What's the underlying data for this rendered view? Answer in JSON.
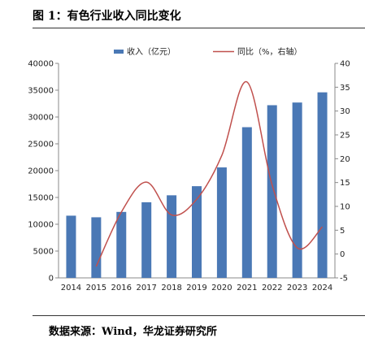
{
  "figure_title": "图 1：有色行业收入同比变化",
  "source_text": "数据来源：Wind，华龙证券研究所",
  "colors": {
    "bar": "#4a78b5",
    "line": "#c0504d",
    "axis": "#888888"
  },
  "chart_data": {
    "type": "bar",
    "categories": [
      "2014",
      "2015",
      "2016",
      "2017",
      "2018",
      "2019",
      "2020",
      "2021",
      "2022",
      "2023",
      "2024"
    ],
    "series": [
      {
        "name": "收入（亿元）",
        "type": "bar",
        "axis": "left",
        "values": [
          11600,
          11300,
          12300,
          14100,
          15400,
          17100,
          20600,
          28100,
          32200,
          32700,
          34600
        ]
      },
      {
        "name": "同比（%，右轴）",
        "type": "line",
        "axis": "right",
        "values": [
          null,
          -2.6,
          8.8,
          15.1,
          8.2,
          11.5,
          20.7,
          36.1,
          14.5,
          1.3,
          5.7
        ]
      }
    ],
    "y_left": {
      "min": 0,
      "max": 40000,
      "ticks": [
        "0",
        "5000",
        "10000",
        "15000",
        "20000",
        "25000",
        "30000",
        "35000",
        "40000"
      ]
    },
    "y_right": {
      "min": -5,
      "max": 40,
      "ticks": [
        "-5",
        "0",
        "5",
        "10",
        "15",
        "20",
        "25",
        "30",
        "35",
        "40"
      ]
    },
    "grid": false,
    "legend_position": "top"
  }
}
